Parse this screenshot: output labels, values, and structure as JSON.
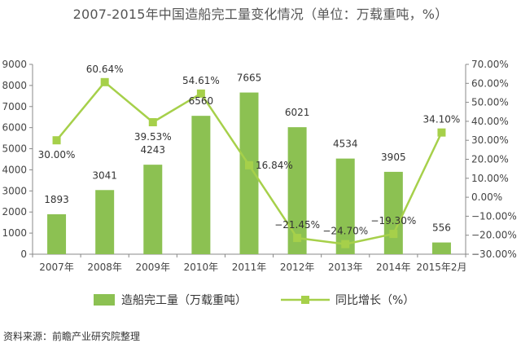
{
  "chart_data": {
    "type": "bar",
    "title": "2007-2015年中国造船完工量变化情况（单位：万载重吨，%）",
    "categories": [
      "2007年",
      "2008年",
      "2009年",
      "2010年",
      "2011年",
      "2012年",
      "2013年",
      "2014年",
      "2015年2月"
    ],
    "series": [
      {
        "name": "造船完工量（万载重吨）",
        "type": "bar",
        "axis": "left",
        "color": "#8cc152",
        "values": [
          1893,
          3041,
          4243,
          6560,
          7665,
          6021,
          4534,
          3905,
          556
        ],
        "labels": [
          "1893",
          "3041",
          "4243",
          "6560",
          "7665",
          "6021",
          "4534",
          "3905",
          "556"
        ]
      },
      {
        "name": "同比增长（%）",
        "type": "line",
        "axis": "right",
        "color": "#a6d04a",
        "values": [
          30.0,
          60.64,
          39.53,
          54.61,
          16.84,
          -21.45,
          -24.7,
          -19.3,
          34.1
        ],
        "labels": [
          "30.00%",
          "60.64%",
          "39.53%",
          "54.61%",
          "16.84%",
          "−21.45%",
          "−24.70%",
          "−19.30%",
          "34.10%"
        ]
      }
    ],
    "y_left": {
      "min": 0,
      "max": 9000,
      "step": 1000,
      "ticks": [
        "0",
        "1000",
        "2000",
        "3000",
        "4000",
        "5000",
        "6000",
        "7000",
        "8000",
        "9000"
      ]
    },
    "y_right": {
      "min": -30,
      "max": 70,
      "step": 10,
      "ticks": [
        "−30.00%",
        "−20.00%",
        "−10.00%",
        "0.00%",
        "10.00%",
        "20.00%",
        "30.00%",
        "40.00%",
        "50.00%",
        "60.00%",
        "70.00%"
      ]
    },
    "grid": false,
    "legend_position": "bottom",
    "source": "资料来源：前瞻产业研究院整理"
  }
}
